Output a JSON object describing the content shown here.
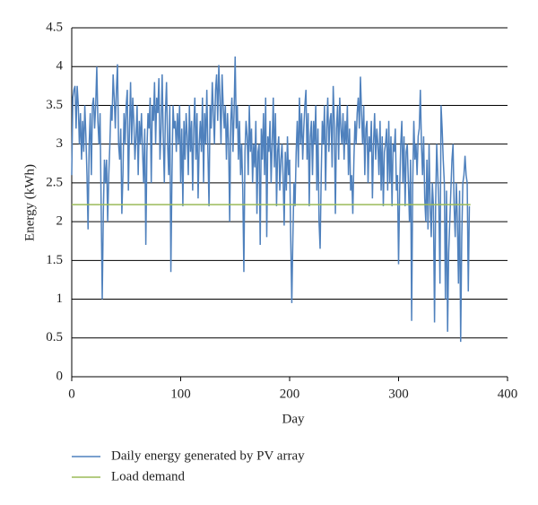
{
  "chart_data": {
    "type": "line",
    "xlabel": "Day",
    "ylabel": "Energy (kWh)",
    "xlim": [
      0,
      400
    ],
    "xticks": [
      0,
      100,
      200,
      300,
      400
    ],
    "ylim": [
      0,
      4.5
    ],
    "yticks": [
      0,
      0.5,
      1,
      1.5,
      2,
      2.5,
      3,
      3.5,
      4,
      4.5
    ],
    "grid": true,
    "legend": "bottom",
    "series": [
      {
        "name": "Daily energy generated by PV array",
        "color": "#4f81bd",
        "x": [
          0,
          1,
          2,
          3,
          4,
          5,
          6,
          7,
          8,
          9,
          10,
          11,
          12,
          13,
          14,
          15,
          16,
          17,
          18,
          19,
          20,
          21,
          22,
          23,
          24,
          25,
          26,
          27,
          28,
          29,
          30,
          31,
          32,
          33,
          34,
          35,
          36,
          37,
          38,
          39,
          40,
          41,
          42,
          43,
          44,
          45,
          46,
          47,
          48,
          49,
          50,
          51,
          52,
          53,
          54,
          55,
          56,
          57,
          58,
          59,
          60,
          61,
          62,
          63,
          64,
          65,
          66,
          67,
          68,
          69,
          70,
          71,
          72,
          73,
          74,
          75,
          76,
          77,
          78,
          79,
          80,
          81,
          82,
          83,
          84,
          85,
          86,
          87,
          88,
          89,
          90,
          91,
          92,
          93,
          94,
          95,
          96,
          97,
          98,
          99,
          100,
          101,
          102,
          103,
          104,
          105,
          106,
          107,
          108,
          109,
          110,
          111,
          112,
          113,
          114,
          115,
          116,
          117,
          118,
          119,
          120,
          121,
          122,
          123,
          124,
          125,
          126,
          127,
          128,
          129,
          130,
          131,
          132,
          133,
          134,
          135,
          136,
          137,
          138,
          139,
          140,
          141,
          142,
          143,
          144,
          145,
          146,
          147,
          148,
          149,
          150,
          151,
          152,
          153,
          154,
          155,
          156,
          157,
          158,
          159,
          160,
          161,
          162,
          163,
          164,
          165,
          166,
          167,
          168,
          169,
          170,
          171,
          172,
          173,
          174,
          175,
          176,
          177,
          178,
          179,
          180,
          181,
          182,
          183,
          184,
          185,
          186,
          187,
          188,
          189,
          190,
          191,
          192,
          193,
          194,
          195,
          196,
          197,
          198,
          199,
          200,
          201,
          202,
          203,
          204,
          205,
          206,
          207,
          208,
          209,
          210,
          211,
          212,
          213,
          214,
          215,
          216,
          217,
          218,
          219,
          220,
          221,
          222,
          223,
          224,
          225,
          226,
          227,
          228,
          229,
          230,
          231,
          232,
          233,
          234,
          235,
          236,
          237,
          238,
          239,
          240,
          241,
          242,
          243,
          244,
          245,
          246,
          247,
          248,
          249,
          250,
          251,
          252,
          253,
          254,
          255,
          256,
          257,
          258,
          259,
          260,
          261,
          262,
          263,
          264,
          265,
          266,
          267,
          268,
          269,
          270,
          271,
          272,
          273,
          274,
          275,
          276,
          277,
          278,
          279,
          280,
          281,
          282,
          283,
          284,
          285,
          286,
          287,
          288,
          289,
          290,
          291,
          292,
          293,
          294,
          295,
          296,
          297,
          298,
          299,
          300,
          301,
          302,
          303,
          304,
          305,
          306,
          307,
          308,
          309,
          310,
          311,
          312,
          313,
          314,
          315,
          316,
          317,
          318,
          319,
          320,
          321,
          322,
          323,
          324,
          325,
          326,
          327,
          328,
          329,
          330,
          331,
          332,
          333,
          334,
          335,
          336,
          337,
          338,
          339,
          340,
          341,
          342,
          343,
          344,
          345,
          346,
          347,
          348,
          349,
          350,
          351,
          352,
          353,
          354,
          355,
          356,
          357,
          358,
          359,
          360,
          361,
          362,
          363,
          364,
          365
        ],
        "values": [
          2.6,
          3.6,
          3.7,
          3.75,
          3.2,
          3.75,
          3.5,
          3.0,
          3.4,
          2.8,
          3.3,
          2.9,
          3.5,
          3.1,
          2.6,
          1.9,
          3.0,
          3.4,
          2.6,
          3.5,
          3.6,
          3.2,
          3.5,
          4.0,
          3.3,
          3.0,
          3.4,
          2.2,
          1.0,
          2.1,
          2.8,
          2.5,
          2.8,
          2.0,
          2.6,
          3.0,
          3.5,
          3.3,
          3.9,
          3.6,
          3.2,
          3.7,
          4.03,
          3.0,
          2.8,
          3.2,
          2.1,
          2.6,
          3.4,
          3.0,
          3.5,
          3.7,
          2.4,
          3.2,
          3.8,
          3.0,
          3.6,
          3.3,
          2.8,
          3.1,
          3.5,
          2.6,
          3.3,
          3.0,
          3.4,
          2.9,
          2.5,
          3.2,
          1.7,
          2.9,
          3.4,
          3.2,
          3.6,
          2.5,
          3.5,
          3.3,
          3.8,
          3.0,
          3.6,
          3.4,
          3.85,
          2.8,
          3.2,
          3.9,
          3.1,
          2.5,
          3.4,
          3.8,
          3.0,
          2.6,
          3.5,
          1.35,
          2.6,
          3.5,
          3.2,
          3.3,
          2.9,
          3.4,
          3.0,
          3.5,
          2.5,
          3.2,
          2.2,
          3.3,
          2.8,
          3.4,
          3.1,
          2.6,
          3.5,
          2.9,
          3.3,
          2.4,
          3.2,
          3.6,
          2.8,
          3.4,
          2.3,
          3.0,
          3.3,
          2.9,
          3.6,
          2.5,
          3.4,
          3.0,
          3.7,
          2.9,
          2.2,
          3.5,
          3.2,
          3.8,
          3.4,
          3.0,
          3.7,
          3.9,
          3.3,
          4.02,
          3.6,
          3.0,
          3.9,
          3.5,
          3.2,
          3.5,
          2.8,
          3.4,
          3.0,
          2.0,
          3.3,
          3.6,
          2.9,
          3.4,
          4.13,
          3.2,
          3.5,
          2.8,
          3.3,
          2.6,
          3.0,
          2.4,
          1.35,
          2.9,
          3.3,
          3.1,
          2.6,
          3.5,
          2.9,
          3.2,
          2.5,
          3.0,
          2.7,
          3.3,
          2.1,
          2.9,
          3.0,
          1.7,
          3.2,
          2.8,
          3.4,
          2.6,
          3.6,
          1.8,
          3.1,
          2.9,
          3.3,
          2.5,
          3.0,
          3.6,
          2.7,
          3.4,
          2.2,
          2.9,
          3.1,
          2.4,
          2.8,
          3.0,
          2.6,
          1.95,
          2.9,
          2.4,
          3.1,
          2.6,
          2.8,
          1.8,
          0.95,
          1.8,
          2.5,
          2.2,
          2.9,
          3.3,
          2.7,
          3.6,
          3.0,
          3.4,
          2.8,
          3.2,
          3.5,
          3.7,
          2.8,
          3.4,
          2.2,
          3.1,
          3.3,
          2.6,
          3.3,
          3.0,
          3.5,
          2.4,
          3.2,
          2.0,
          1.65,
          2.6,
          3.3,
          3.0,
          3.5,
          2.4,
          3.2,
          3.6,
          2.9,
          3.3,
          3.4,
          2.7,
          3.75,
          3.3,
          2.1,
          3.2,
          3.5,
          2.8,
          3.6,
          3.2,
          3.0,
          3.4,
          2.8,
          3.3,
          3.0,
          3.5,
          2.6,
          3.2,
          2.4,
          2.6,
          2.1,
          2.8,
          3.3,
          3.0,
          3.4,
          3.6,
          3.2,
          3.87,
          3.4,
          3.0,
          3.5,
          2.6,
          3.2,
          3.3,
          2.5,
          3.1,
          2.9,
          3.3,
          2.3,
          3.0,
          3.4,
          2.8,
          3.2,
          3.0,
          2.6,
          3.3,
          2.4,
          3.1,
          2.2,
          2.9,
          3.0,
          3.2,
          2.4,
          3.3,
          2.5,
          3.1,
          2.2,
          3.0,
          2.9,
          3.2,
          2.4,
          2.6,
          1.45,
          2.4,
          3.0,
          3.3,
          2.5,
          3.1,
          2.2,
          2.9,
          3.0,
          2.5,
          2.0,
          2.8,
          0.72,
          2.5,
          3.3,
          2.8,
          3.0,
          2.6,
          3.1,
          3.2,
          3.7,
          3.0,
          2.6,
          3.1,
          2.3,
          2.0,
          2.8,
          1.9,
          3.0,
          2.2,
          1.8,
          2.5,
          2.2,
          0.7,
          2.2,
          3.0,
          2.6,
          2.2,
          1.2,
          3.5,
          3.2,
          2.8,
          2.5,
          1.0,
          2.4,
          0.58,
          1.6,
          2.0,
          2.4,
          2.8,
          3.0,
          2.2,
          1.8,
          2.5,
          2.0,
          1.2,
          2.4,
          0.45,
          1.8,
          2.5,
          2.6,
          2.85,
          2.6,
          2.5,
          1.1,
          2.2
        ]
      },
      {
        "name": "Load demand",
        "color": "#9bbb59",
        "x": [
          0,
          366
        ],
        "values": [
          2.22,
          2.22
        ]
      }
    ]
  }
}
